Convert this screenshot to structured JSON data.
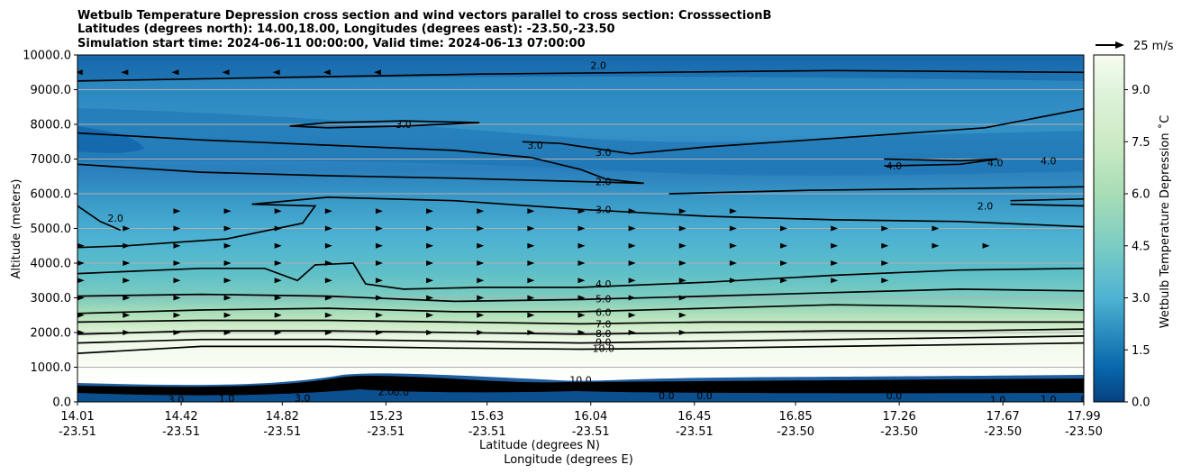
{
  "chart_data": {
    "type": "contour",
    "title_lines": [
      "Wetbulb Temperature Depression cross section and wind vectors parallel to cross section: CrosssectionB",
      "Latitudes (degrees north): 14.00,18.00, Longitudes (degrees east): -23.50,-23.50",
      "Simulation start time: 2024-06-11 00:00:00, Valid time: 2024-06-13 07:00:00"
    ],
    "ylabel": "Altitude (meters)",
    "xlabel_lat": "Latitude (degrees N)",
    "xlabel_lon": "Longitude (degrees E)",
    "ylim": [
      0,
      10000
    ],
    "y_ticks": [
      "0.0",
      "1000.0",
      "2000.0",
      "3000.0",
      "4000.0",
      "5000.0",
      "6000.0",
      "7000.0",
      "8000.0",
      "9000.0",
      "10000.0"
    ],
    "x_ticks_lat": [
      "14.01",
      "14.42",
      "14.82",
      "15.23",
      "15.63",
      "16.04",
      "16.45",
      "16.85",
      "17.26",
      "17.67",
      "17.99"
    ],
    "x_ticks_lon": [
      "-23.51",
      "-23.51",
      "-23.51",
      "-23.51",
      "-23.51",
      "-23.51",
      "-23.51",
      "-23.50",
      "-23.50",
      "-23.50",
      "-23.50"
    ],
    "colorbar": {
      "label": "Wetbulb Temperature Depression ˚C",
      "ticks": [
        "0.0",
        "1.5",
        "3.0",
        "4.5",
        "6.0",
        "7.5",
        "9.0"
      ],
      "vmin": 0,
      "vmax": 10
    },
    "wind_key_label": "25 m/s",
    "contour_labels": [
      {
        "text": "2.0",
        "x": 16.07,
        "y": 9700
      },
      {
        "text": "3.0",
        "x": 15.3,
        "y": 8000
      },
      {
        "text": "3.0",
        "x": 15.82,
        "y": 7400
      },
      {
        "text": "3.0",
        "x": 16.09,
        "y": 7200
      },
      {
        "text": "2.0",
        "x": 16.09,
        "y": 6350
      },
      {
        "text": "3.0",
        "x": 16.09,
        "y": 5550
      },
      {
        "text": "2.0",
        "x": 14.16,
        "y": 5300
      },
      {
        "text": "4.0",
        "x": 17.24,
        "y": 6800
      },
      {
        "text": "4.0",
        "x": 17.64,
        "y": 6900
      },
      {
        "text": "4.0",
        "x": 17.85,
        "y": 6950
      },
      {
        "text": "2.0",
        "x": 17.6,
        "y": 5650
      },
      {
        "text": "4.0",
        "x": 16.09,
        "y": 3400
      },
      {
        "text": "5.0",
        "x": 16.09,
        "y": 2980
      },
      {
        "text": "6.0",
        "x": 16.09,
        "y": 2580
      },
      {
        "text": "7.0",
        "x": 16.09,
        "y": 2250
      },
      {
        "text": "8.0",
        "x": 16.09,
        "y": 1980
      },
      {
        "text": "9.0",
        "x": 16.09,
        "y": 1730
      },
      {
        "text": "10.0",
        "x": 16.09,
        "y": 1540
      },
      {
        "text": "10.0",
        "x": 16.0,
        "y": 640
      },
      {
        "text": "3.0",
        "x": 14.4,
        "y": 70
      },
      {
        "text": "1.0",
        "x": 14.6,
        "y": 100
      },
      {
        "text": "3.0",
        "x": 14.9,
        "y": 120
      },
      {
        "text": "2.0",
        "x": 15.23,
        "y": 300
      },
      {
        "text": "0.0",
        "x": 15.29,
        "y": 280
      },
      {
        "text": "0.0",
        "x": 16.34,
        "y": 180
      },
      {
        "text": "0.0",
        "x": 16.49,
        "y": 180
      },
      {
        "text": "0.0",
        "x": 17.24,
        "y": 180
      },
      {
        "text": "1.0",
        "x": 17.65,
        "y": 60
      },
      {
        "text": "1.0",
        "x": 17.85,
        "y": 80
      },
      {
        "text": "0",
        "x": 17.99,
        "y": 80
      }
    ],
    "contour_lines": [
      {
        "level": 2.0,
        "points": [
          [
            14.01,
            9250
          ],
          [
            14.8,
            9350
          ],
          [
            15.6,
            9450
          ],
          [
            16.3,
            9500
          ],
          [
            17.0,
            9550
          ],
          [
            17.99,
            9500
          ]
        ]
      },
      {
        "level": 2.0,
        "points": [
          [
            14.01,
            7750
          ],
          [
            14.5,
            7550
          ],
          [
            15.0,
            7400
          ],
          [
            15.5,
            7250
          ],
          [
            15.8,
            7050
          ],
          [
            16.0,
            6700
          ],
          [
            16.1,
            6420
          ],
          [
            16.25,
            6300
          ],
          [
            16.0,
            6350
          ],
          [
            15.5,
            6450
          ],
          [
            15.0,
            6520
          ],
          [
            14.5,
            6620
          ],
          [
            14.01,
            6850
          ]
        ]
      },
      {
        "level": 3.0,
        "points": [
          [
            14.85,
            7950
          ],
          [
            15.0,
            8050
          ],
          [
            15.3,
            8100
          ],
          [
            15.6,
            8050
          ],
          [
            15.3,
            7950
          ],
          [
            15.0,
            7900
          ],
          [
            14.85,
            7950
          ]
        ]
      },
      {
        "level": 3.0,
        "points": [
          [
            15.77,
            7500
          ],
          [
            15.92,
            7450
          ],
          [
            16.2,
            7150
          ],
          [
            16.5,
            7350
          ],
          [
            16.8,
            7500
          ],
          [
            17.2,
            7700
          ],
          [
            17.6,
            7900
          ],
          [
            17.99,
            8450
          ]
        ]
      },
      {
        "level": 4.0,
        "points": [
          [
            17.2,
            7000
          ],
          [
            17.5,
            6950
          ],
          [
            17.65,
            7000
          ],
          [
            17.5,
            6850
          ],
          [
            17.2,
            6800
          ]
        ]
      },
      {
        "level": 2.0,
        "points": [
          [
            16.35,
            6000
          ],
          [
            16.9,
            6100
          ],
          [
            17.5,
            6150
          ],
          [
            17.99,
            6200
          ]
        ]
      },
      {
        "level": 2.0,
        "points": [
          [
            17.7,
            5800
          ],
          [
            17.99,
            5850
          ]
        ]
      },
      {
        "level": 2.0,
        "points": [
          [
            17.7,
            5700
          ],
          [
            17.99,
            5650
          ]
        ]
      },
      {
        "level": 3.0,
        "points": [
          [
            14.7,
            5700
          ],
          [
            15.0,
            5900
          ],
          [
            15.5,
            5800
          ],
          [
            16.0,
            5550
          ],
          [
            16.5,
            5350
          ],
          [
            17.0,
            5250
          ],
          [
            17.5,
            5200
          ],
          [
            17.99,
            5050
          ]
        ]
      },
      {
        "level": 3.0,
        "points": [
          [
            14.01,
            5650
          ],
          [
            14.1,
            5200
          ],
          [
            14.18,
            4950
          ]
        ]
      },
      {
        "level": 3.0,
        "points": [
          [
            14.7,
            5700
          ],
          [
            14.95,
            5650
          ],
          [
            14.9,
            5150
          ],
          [
            14.6,
            4700
          ],
          [
            14.2,
            4500
          ],
          [
            14.01,
            4450
          ]
        ]
      },
      {
        "level": 4.0,
        "points": [
          [
            14.01,
            3700
          ],
          [
            14.5,
            3850
          ],
          [
            14.75,
            3850
          ],
          [
            14.88,
            3500
          ],
          [
            14.95,
            3950
          ],
          [
            15.1,
            4000
          ],
          [
            15.15,
            3400
          ],
          [
            15.3,
            3250
          ],
          [
            15.6,
            3300
          ],
          [
            16.0,
            3300
          ],
          [
            16.5,
            3450
          ],
          [
            17.0,
            3650
          ],
          [
            17.5,
            3800
          ],
          [
            17.99,
            3850
          ]
        ]
      },
      {
        "level": 5.0,
        "points": [
          [
            14.01,
            3050
          ],
          [
            14.5,
            3100
          ],
          [
            15.0,
            3050
          ],
          [
            15.5,
            2900
          ],
          [
            16.0,
            2950
          ],
          [
            16.5,
            3050
          ],
          [
            17.0,
            3150
          ],
          [
            17.5,
            3250
          ],
          [
            17.99,
            3200
          ]
        ]
      },
      {
        "level": 6.0,
        "points": [
          [
            14.01,
            2550
          ],
          [
            14.5,
            2650
          ],
          [
            15.0,
            2700
          ],
          [
            15.5,
            2600
          ],
          [
            16.0,
            2600
          ],
          [
            16.5,
            2700
          ],
          [
            17.0,
            2800
          ],
          [
            17.5,
            2750
          ],
          [
            17.99,
            2650
          ]
        ]
      },
      {
        "level": 7.0,
        "points": [
          [
            14.01,
            2300
          ],
          [
            14.5,
            2350
          ],
          [
            15.0,
            2350
          ],
          [
            15.5,
            2300
          ],
          [
            16.0,
            2250
          ],
          [
            16.5,
            2300
          ],
          [
            17.0,
            2300
          ],
          [
            17.5,
            2300
          ],
          [
            17.99,
            2300
          ]
        ]
      },
      {
        "level": 8.0,
        "points": [
          [
            14.01,
            1950
          ],
          [
            14.5,
            2050
          ],
          [
            15.0,
            2050
          ],
          [
            15.5,
            2000
          ],
          [
            16.0,
            1950
          ],
          [
            16.5,
            2000
          ],
          [
            17.0,
            2050
          ],
          [
            17.5,
            2050
          ],
          [
            17.99,
            2100
          ]
        ]
      },
      {
        "level": 9.0,
        "points": [
          [
            14.01,
            1700
          ],
          [
            14.5,
            1800
          ],
          [
            15.0,
            1800
          ],
          [
            15.5,
            1750
          ],
          [
            16.0,
            1700
          ],
          [
            16.5,
            1750
          ],
          [
            17.0,
            1800
          ],
          [
            17.5,
            1850
          ],
          [
            17.99,
            1900
          ]
        ]
      },
      {
        "level": 10.0,
        "points": [
          [
            14.01,
            1400
          ],
          [
            14.5,
            1600
          ],
          [
            15.0,
            1600
          ],
          [
            15.5,
            1550
          ],
          [
            16.0,
            1520
          ],
          [
            16.5,
            1550
          ],
          [
            17.0,
            1600
          ],
          [
            17.5,
            1650
          ],
          [
            17.99,
            1700
          ]
        ]
      }
    ],
    "wind_vectors": [
      {
        "y": 9500,
        "x": [
          14.02,
          14.2,
          14.4,
          14.6,
          14.8,
          15.0,
          15.2
        ],
        "u": [
          -1,
          -1,
          -1,
          -1,
          -1,
          -1,
          -1
        ]
      },
      {
        "y": 5500,
        "x": [
          14.4,
          14.6,
          14.8,
          15.0,
          15.2,
          15.4,
          15.6,
          15.8,
          16.0,
          16.2,
          16.4,
          16.6
        ],
        "u": [
          1,
          1,
          1,
          1,
          1,
          1,
          1,
          1,
          1,
          1,
          1,
          1
        ]
      },
      {
        "y": 5000,
        "x": [
          14.2,
          14.4,
          14.6,
          14.8,
          15.0,
          15.2,
          15.4,
          15.6,
          15.8,
          16.0,
          16.2,
          16.4,
          16.6,
          16.8,
          17.0,
          17.2,
          17.4
        ],
        "u": [
          1,
          1,
          1,
          1,
          1,
          1,
          1,
          1,
          1,
          1,
          1,
          1,
          1,
          1,
          1,
          1,
          1
        ]
      },
      {
        "y": 4500,
        "x": [
          14.02,
          14.2,
          14.4,
          14.6,
          14.8,
          15.0,
          15.2,
          15.4,
          15.6,
          15.8,
          16.0,
          16.2,
          16.4,
          16.6,
          16.8,
          17.0,
          17.2,
          17.4,
          17.6
        ],
        "u": [
          1,
          1,
          1,
          1,
          1,
          1,
          1,
          1,
          1,
          1,
          1,
          1,
          1,
          1,
          1,
          1,
          1,
          1,
          1
        ]
      },
      {
        "y": 4000,
        "x": [
          14.02,
          14.2,
          14.4,
          14.6,
          14.8,
          15.0,
          15.2,
          15.4,
          15.6,
          15.8,
          16.0,
          16.2,
          16.4,
          16.6,
          16.8,
          17.0,
          17.2
        ],
        "u": [
          1,
          1,
          1,
          1,
          1,
          1,
          1,
          1,
          1,
          1,
          1,
          1,
          1,
          1,
          1,
          1,
          1
        ]
      },
      {
        "y": 3500,
        "x": [
          14.02,
          14.2,
          14.4,
          14.6,
          14.8,
          15.0,
          15.2,
          15.4,
          15.6,
          15.8,
          16.0,
          16.2,
          16.4,
          16.6,
          16.8,
          17.0,
          17.2
        ],
        "u": [
          1,
          1,
          1,
          1,
          1,
          1,
          1,
          1,
          1,
          1,
          1,
          1,
          1,
          1,
          1,
          1,
          1
        ]
      },
      {
        "y": 3000,
        "x": [
          14.02,
          14.2,
          14.4,
          14.6,
          14.8,
          15.0,
          15.2,
          15.4,
          15.6,
          15.8,
          16.0,
          16.2,
          16.4
        ],
        "u": [
          1,
          1,
          1,
          1,
          1,
          1,
          1,
          1,
          1,
          1,
          1,
          1,
          1
        ]
      },
      {
        "y": 2500,
        "x": [
          14.02,
          14.2,
          14.4,
          14.6,
          14.8,
          15.0,
          15.2,
          15.4,
          15.6,
          15.8,
          16.0,
          16.2,
          16.4
        ],
        "u": [
          1,
          1,
          1,
          1,
          1,
          1,
          1,
          1,
          1,
          1,
          1,
          1,
          1
        ]
      },
      {
        "y": 2000,
        "x": [
          14.02,
          14.2,
          14.4,
          14.6,
          14.8,
          15.0,
          15.2,
          15.4,
          15.6,
          15.8,
          16.0,
          16.2,
          16.4
        ],
        "u": [
          1,
          1,
          1,
          1,
          1,
          1,
          1,
          1,
          1,
          1,
          1,
          1,
          1
        ]
      }
    ]
  }
}
